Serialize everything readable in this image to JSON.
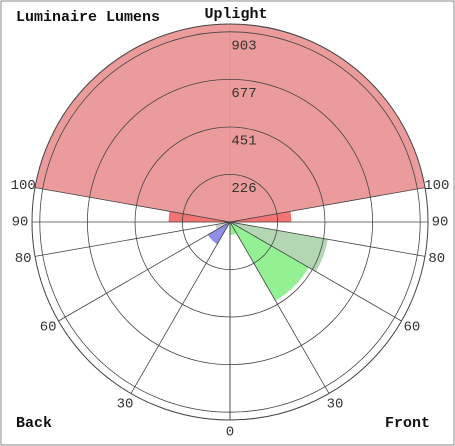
{
  "chart_data": {
    "type": "polar",
    "title": "Luminaire Lumens",
    "top_label": "Uplight",
    "left_label": "Back",
    "right_label": "Front",
    "rlim": [
      0,
      940
    ],
    "rticks": [
      226,
      451,
      677,
      903
    ],
    "angle_ticks": [
      0,
      30,
      60,
      80,
      90,
      100
    ],
    "zones": [
      {
        "from": 100,
        "to": 180,
        "value": 940,
        "color": "#e88a8a"
      },
      {
        "from": -180,
        "to": -100,
        "value": 940,
        "color": "#e88a8a"
      },
      {
        "from": 90,
        "to": 100,
        "value": 290,
        "color": "#f05a5a"
      },
      {
        "from": -100,
        "to": -90,
        "value": 290,
        "color": "#f05a5a"
      },
      {
        "from": 60,
        "to": 80,
        "value": 470,
        "color": "#a6cfa6"
      },
      {
        "from": 30,
        "to": 60,
        "value": 430,
        "color": "#80ee80"
      },
      {
        "from": 0,
        "to": 30,
        "value": 60,
        "color": "#80ee80"
      },
      {
        "from": -60,
        "to": -30,
        "value": 120,
        "color": "#7b7be8"
      },
      {
        "from": -80,
        "to": -60,
        "value": 70,
        "color": "#c8c8c8"
      }
    ]
  }
}
